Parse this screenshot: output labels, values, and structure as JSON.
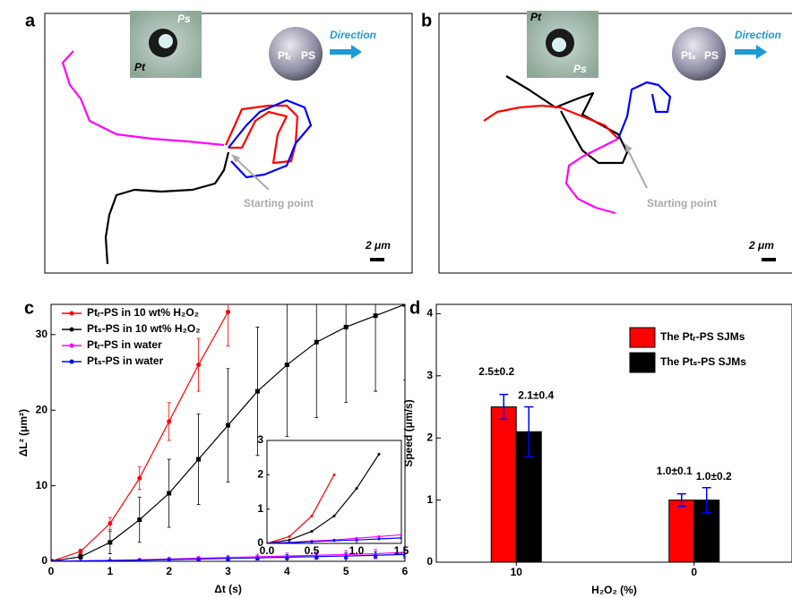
{
  "panel_a": {
    "letter": "a",
    "inset": {
      "top": "Ps",
      "bottom": "Pt"
    },
    "janus": {
      "left": "Ptᵣ",
      "right": "PS"
    },
    "direction": "Direction",
    "start": "Starting point",
    "scale": "2 μm"
  },
  "panel_b": {
    "letter": "b",
    "inset": {
      "top": "Pt",
      "bottom": "Ps"
    },
    "janus": {
      "left": "Ptₛ",
      "right": "PS"
    },
    "direction": "Direction",
    "start": "Starting point",
    "scale": "2 μm"
  },
  "chart_data": [
    {
      "type": "line",
      "panel": "c",
      "xlabel": "Δt (s)",
      "ylabel": "ΔL² (μm²)",
      "x": [
        0,
        0.5,
        1,
        1.5,
        2,
        2.5,
        3,
        3.5,
        4,
        4.5,
        5,
        5.5,
        6
      ],
      "xlim": [
        0,
        6
      ],
      "xticks": [
        0,
        1,
        2,
        3,
        4,
        5,
        6
      ],
      "ylim": [
        0,
        34
      ],
      "yticks": [
        0,
        10,
        20,
        30
      ],
      "series": [
        {
          "name": "Ptᵣ-PS in 10 wt% H₂O₂",
          "color": "#ff0000",
          "marker": "circle",
          "values": [
            0,
            1.3,
            5,
            11,
            18.5,
            26,
            33,
            null,
            null,
            null,
            null,
            null,
            null
          ],
          "errors": [
            0,
            0.3,
            0.8,
            1.5,
            2.5,
            3.5,
            4.5,
            null,
            null,
            null,
            null,
            null,
            null
          ]
        },
        {
          "name": "Ptₛ-PS in 10 wt% H₂O₂",
          "color": "#000000",
          "marker": "square",
          "values": [
            0,
            0.6,
            2.5,
            5.5,
            9,
            13.5,
            18,
            22.5,
            26,
            29,
            31,
            32.5,
            34
          ],
          "errors": [
            0,
            0.3,
            1.5,
            3,
            4.5,
            6,
            7.5,
            8.5,
            9.5,
            10,
            10,
            10,
            10
          ]
        },
        {
          "name": "Ptᵣ-PS in water",
          "color": "#ff00ff",
          "marker": "triangle",
          "values": [
            0,
            0.05,
            0.12,
            0.2,
            0.3,
            0.4,
            0.5,
            0.6,
            0.7,
            0.8,
            0.9,
            1.0,
            1.2
          ],
          "errors": [
            0,
            0.05,
            0.1,
            0.15,
            0.2,
            0.25,
            0.3,
            0.35,
            0.4,
            0.45,
            0.5,
            0.55,
            0.6
          ]
        },
        {
          "name": "Ptₛ-PS in water",
          "color": "#0000ff",
          "marker": "triangle",
          "values": [
            0,
            0.04,
            0.1,
            0.15,
            0.22,
            0.3,
            0.38,
            0.45,
            0.55,
            0.62,
            0.7,
            0.8,
            0.9
          ],
          "errors": [
            0,
            0.04,
            0.08,
            0.12,
            0.16,
            0.2,
            0.24,
            0.28,
            0.32,
            0.36,
            0.4,
            0.44,
            0.48
          ]
        }
      ],
      "legend": "upper left"
    },
    {
      "type": "line",
      "inset": true,
      "x": [
        0,
        0.25,
        0.5,
        0.75,
        1,
        1.25,
        1.5
      ],
      "xlim": [
        0,
        1.5
      ],
      "xticks": [
        {
          "value": 0,
          "label": "0.0"
        },
        {
          "value": 0.5,
          "label": "0.5"
        },
        {
          "value": 1,
          "label": "1.0"
        },
        {
          "value": 1.5,
          "label": "1.5"
        }
      ],
      "ylim": [
        0,
        3
      ],
      "yticks": [
        0,
        1,
        2,
        3
      ],
      "series": [
        {
          "color": "#ff0000",
          "values": [
            0,
            0.2,
            0.8,
            2.0,
            null,
            null,
            null
          ]
        },
        {
          "color": "#000000",
          "values": [
            0,
            0.1,
            0.35,
            0.8,
            1.6,
            2.6,
            null
          ]
        },
        {
          "color": "#ff00ff",
          "values": [
            0,
            0.03,
            0.07,
            0.1,
            0.15,
            0.2,
            0.25
          ]
        },
        {
          "color": "#0000ff",
          "values": [
            0,
            0.02,
            0.05,
            0.08,
            0.1,
            0.13,
            0.16
          ]
        }
      ]
    },
    {
      "type": "bar",
      "panel": "d",
      "xlabel": "H₂O₂ (%)",
      "ylabel": "Speed (μm/s)",
      "categories": [
        "10",
        "0"
      ],
      "ylim": [
        0,
        4.15
      ],
      "yticks": [
        0,
        1,
        2,
        3,
        4
      ],
      "series": [
        {
          "name": "The Ptᵣ-PS SJMs",
          "color": "#ff0000",
          "values": [
            2.5,
            1.0
          ],
          "errors": [
            0.2,
            0.1
          ],
          "value_labels": [
            "2.5±0.2",
            "1.0±0.1"
          ]
        },
        {
          "name": "The Ptₛ-PS SJMs",
          "color": "#000000",
          "values": [
            2.1,
            1.0
          ],
          "errors": [
            0.4,
            0.2
          ],
          "value_labels": [
            "2.1±0.4",
            "1.0±0.2"
          ]
        }
      ],
      "legend": "upper right"
    }
  ]
}
